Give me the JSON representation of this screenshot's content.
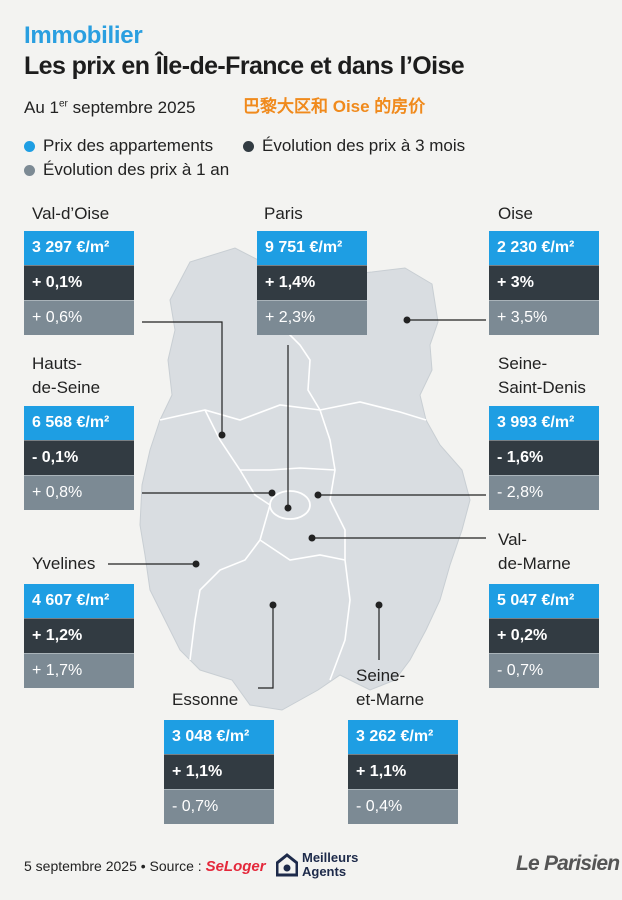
{
  "header": {
    "kicker": "Immobilier",
    "title": "Les prix en Île-de-France et dans l’Oise",
    "date_prefix": "Au 1",
    "date_sup": "er",
    "date_suffix": " septembre 2025",
    "cn_caption": "巴黎大区和 Oise 的房价"
  },
  "legend": [
    {
      "label": "Prix des appartements",
      "color": "#1e9ee3"
    },
    {
      "label": "Évolution des prix à 3 mois",
      "color": "#323b42"
    },
    {
      "label": "Évolution des prix à 1 an",
      "color": "#7c8a94"
    }
  ],
  "colors": {
    "price": "#1e9ee3",
    "three_months": "#323b42",
    "one_year": "#7c8a94",
    "map": "#d9dde1"
  },
  "chart_data": {
    "type": "table",
    "columns": [
      "Prix des appartements",
      "Évolution des prix à 3 mois",
      "Évolution des prix à 1 an"
    ],
    "rows": [
      {
        "region": "Val-d’Oise",
        "price": "3 297 €/m²",
        "m3": "+ 0,1%",
        "y1": "+ 0,6%"
      },
      {
        "region": "Paris",
        "price": "9 751 €/m²",
        "m3": "+ 1,4%",
        "y1": "+ 2,3%"
      },
      {
        "region": "Oise",
        "price": "2 230 €/m²",
        "m3": "+ 3%",
        "y1": "+ 3,5%"
      },
      {
        "region": "Hauts-de-Seine",
        "price": "6 568 €/m²",
        "m3": "- 0,1%",
        "y1": "+ 0,8%"
      },
      {
        "region": "Seine-Saint-Denis",
        "price": "3 993 €/m²",
        "m3": "- 1,6%",
        "y1": "- 2,8%"
      },
      {
        "region": "Yvelines",
        "price": "4 607 €/m²",
        "m3": "+ 1,2%",
        "y1": "+ 1,7%"
      },
      {
        "region": "Val-de-Marne",
        "price": "5 047 €/m²",
        "m3": "+ 0,2%",
        "y1": "- 0,7%"
      },
      {
        "region": "Essonne",
        "price": "3 048 €/m²",
        "m3": "+ 1,1%",
        "y1": "- 0,7%"
      },
      {
        "region": "Seine-et-Marne",
        "price": "3 262 €/m²",
        "m3": "+ 1,1%",
        "y1": "- 0,4%"
      }
    ]
  },
  "labels": {
    "val_doise": "Val-d’Oise",
    "paris": "Paris",
    "oise": "Oise",
    "hds_1": "Hauts-",
    "hds_2": "de-Seine",
    "ssd_1": "Seine-",
    "ssd_2": "Saint-Denis",
    "yvelines": "Yvelines",
    "vdm_1": "Val-",
    "vdm_2": "de-Marne",
    "essonne": "Essonne",
    "sem_1": "Seine-",
    "sem_2": "et-Marne"
  },
  "footer": {
    "text": "5 septembre 2025 • Source : ",
    "seloger": "SeLoger",
    "ma_line1": "Meilleurs",
    "ma_line2": "Agents",
    "brand": "Le Parisien"
  }
}
